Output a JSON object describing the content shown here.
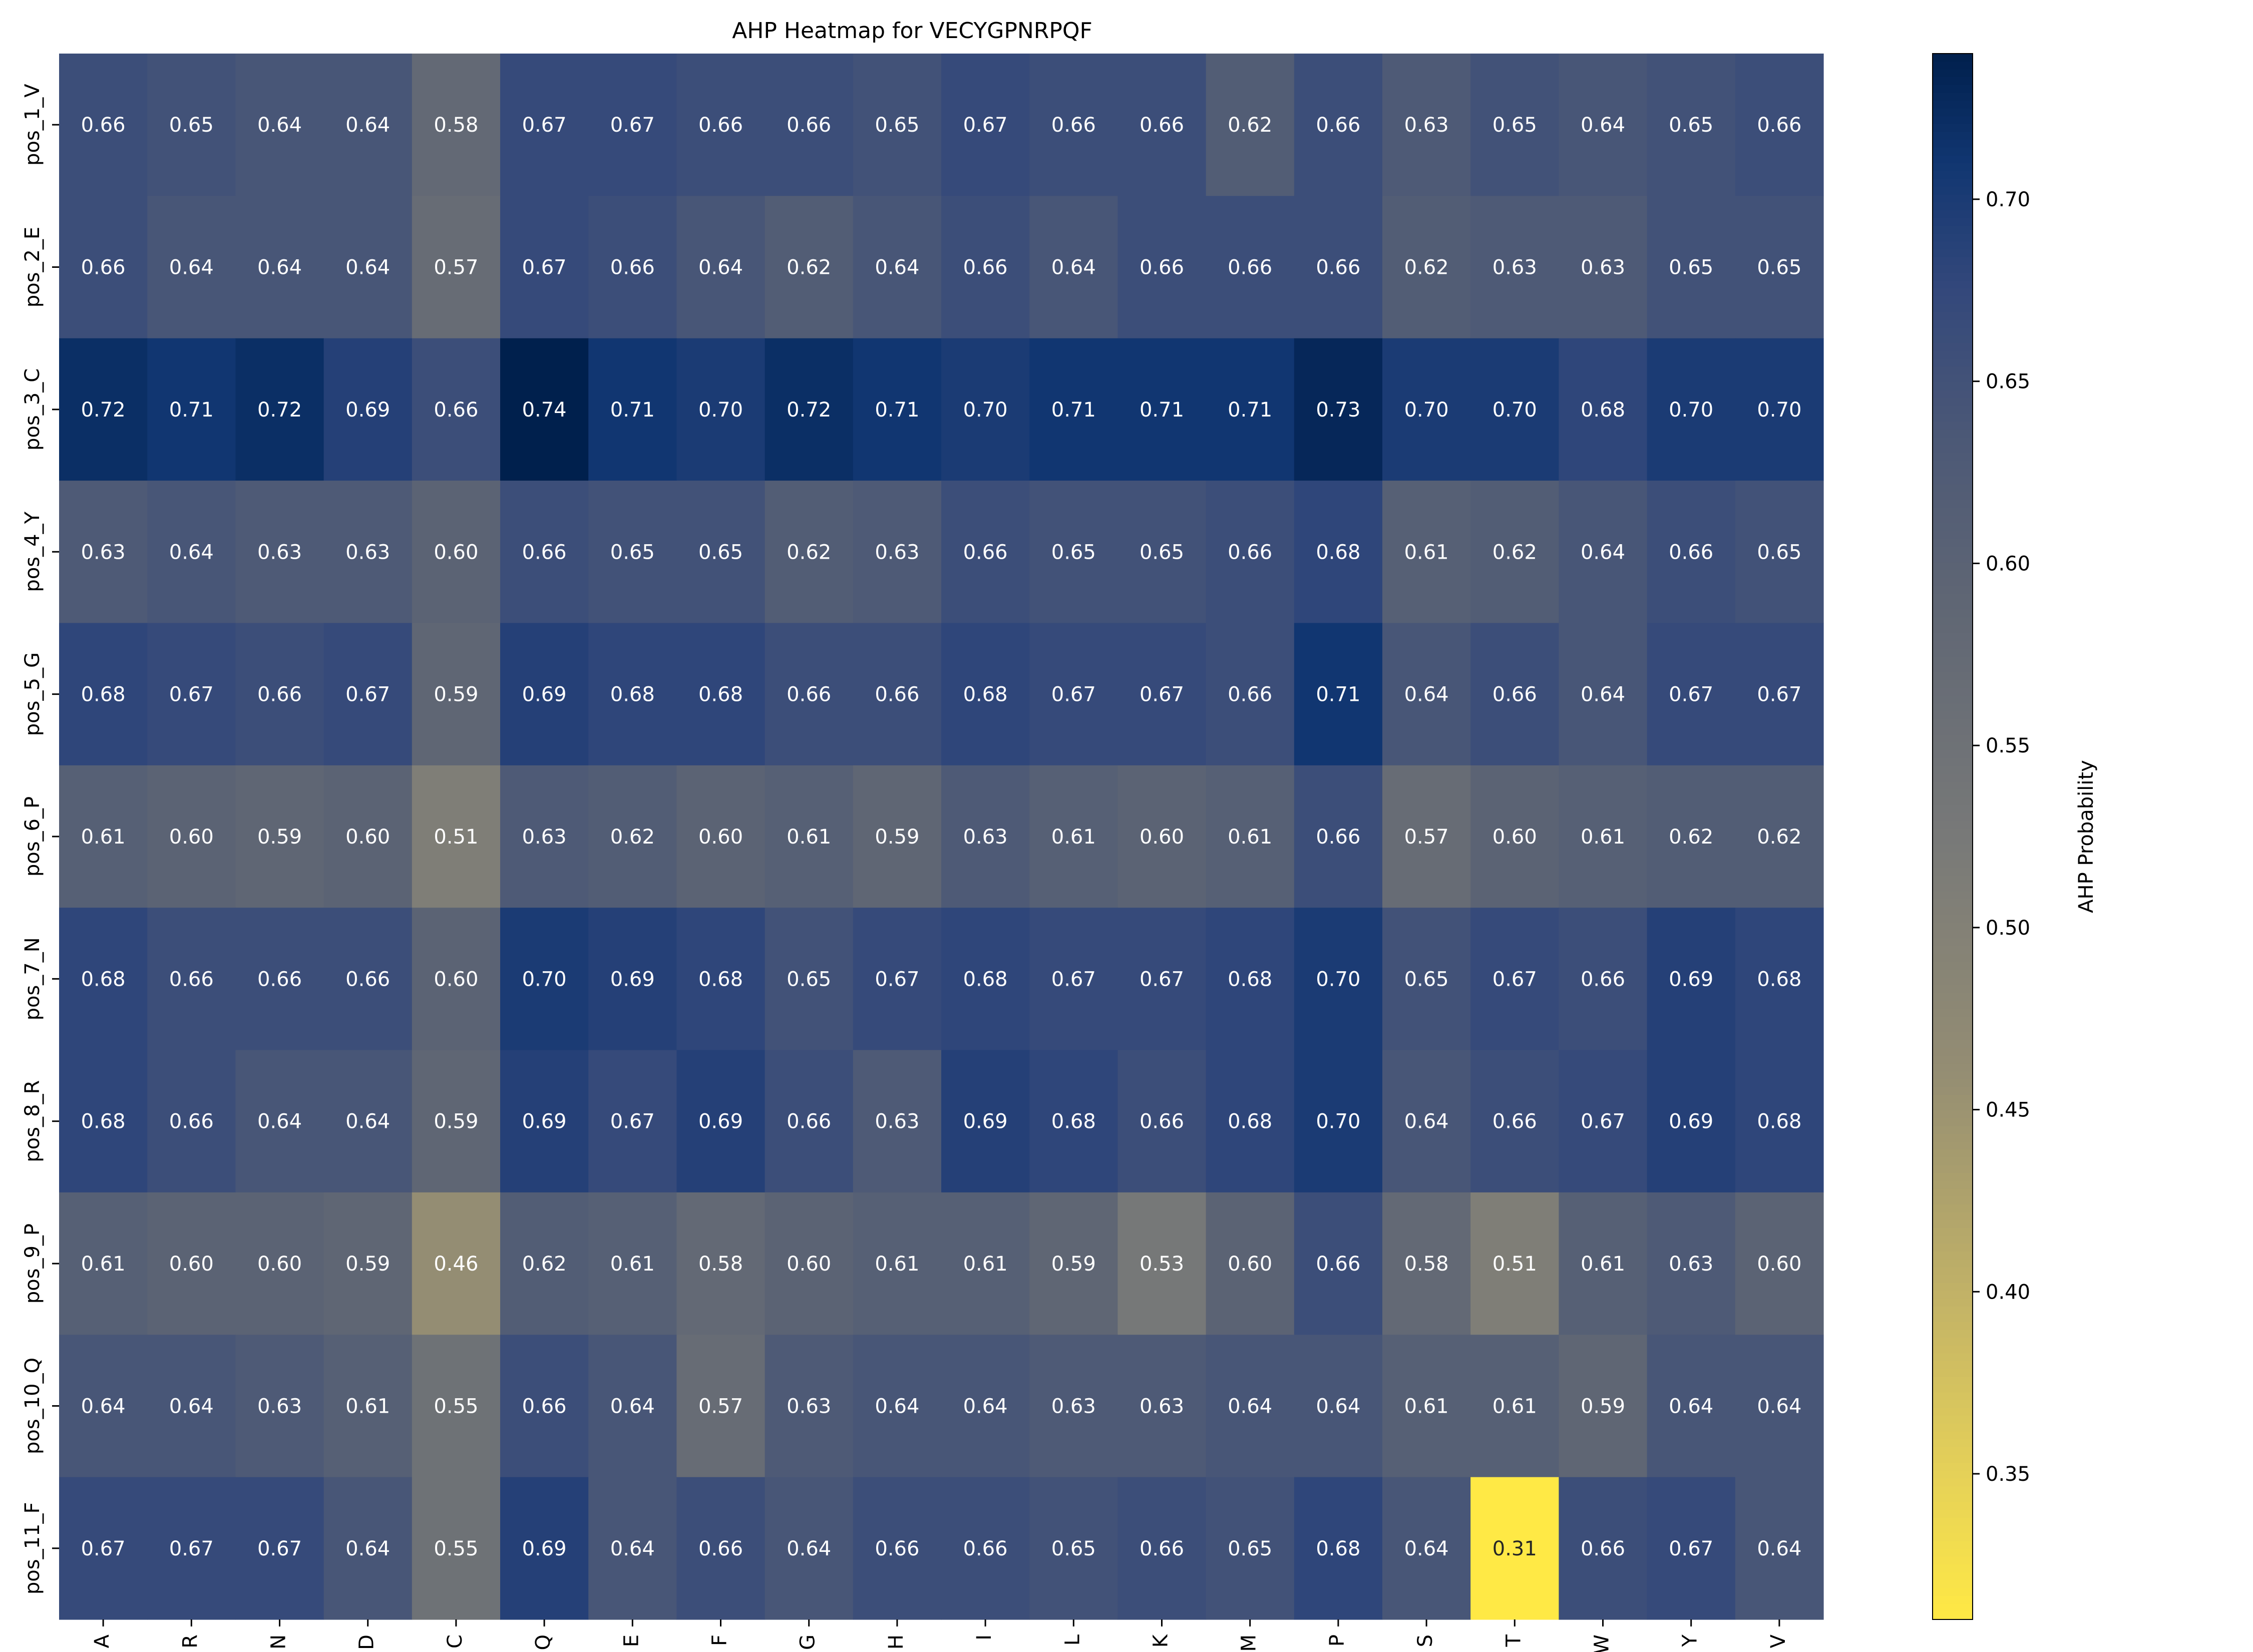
{
  "chart_data": {
    "type": "heatmap",
    "title": "AHP Heatmap for VECYGPNRPQF",
    "xlabel": "",
    "ylabel": "",
    "x_categories": [
      "A",
      "R",
      "N",
      "D",
      "C",
      "Q",
      "E",
      "F",
      "G",
      "H",
      "I",
      "L",
      "K",
      "M",
      "P",
      "S",
      "T",
      "W",
      "Y",
      "V"
    ],
    "y_categories": [
      "pos_1_V",
      "pos_2_E",
      "pos_3_C",
      "pos_4_Y",
      "pos_5_G",
      "pos_6_P",
      "pos_7_N",
      "pos_8_R",
      "pos_9_P",
      "pos_10_Q",
      "pos_11_F"
    ],
    "values": [
      [
        0.66,
        0.65,
        0.64,
        0.64,
        0.58,
        0.67,
        0.67,
        0.66,
        0.66,
        0.65,
        0.67,
        0.66,
        0.66,
        0.62,
        0.66,
        0.63,
        0.65,
        0.64,
        0.65,
        0.66
      ],
      [
        0.66,
        0.64,
        0.64,
        0.64,
        0.57,
        0.67,
        0.66,
        0.64,
        0.62,
        0.64,
        0.66,
        0.64,
        0.66,
        0.66,
        0.66,
        0.62,
        0.63,
        0.63,
        0.65,
        0.65
      ],
      [
        0.72,
        0.71,
        0.72,
        0.69,
        0.66,
        0.74,
        0.71,
        0.7,
        0.72,
        0.71,
        0.7,
        0.71,
        0.71,
        0.71,
        0.73,
        0.7,
        0.7,
        0.68,
        0.7,
        0.7
      ],
      [
        0.63,
        0.64,
        0.63,
        0.63,
        0.6,
        0.66,
        0.65,
        0.65,
        0.62,
        0.63,
        0.66,
        0.65,
        0.65,
        0.66,
        0.68,
        0.61,
        0.62,
        0.64,
        0.66,
        0.65
      ],
      [
        0.68,
        0.67,
        0.66,
        0.67,
        0.59,
        0.69,
        0.68,
        0.68,
        0.66,
        0.66,
        0.68,
        0.67,
        0.67,
        0.66,
        0.71,
        0.64,
        0.66,
        0.64,
        0.67,
        0.67
      ],
      [
        0.61,
        0.6,
        0.59,
        0.6,
        0.51,
        0.63,
        0.62,
        0.6,
        0.61,
        0.59,
        0.63,
        0.61,
        0.6,
        0.61,
        0.66,
        0.57,
        0.6,
        0.61,
        0.62,
        0.62
      ],
      [
        0.68,
        0.66,
        0.66,
        0.66,
        0.6,
        0.7,
        0.69,
        0.68,
        0.65,
        0.67,
        0.68,
        0.67,
        0.67,
        0.68,
        0.7,
        0.65,
        0.67,
        0.66,
        0.69,
        0.68
      ],
      [
        0.68,
        0.66,
        0.64,
        0.64,
        0.59,
        0.69,
        0.67,
        0.69,
        0.66,
        0.63,
        0.69,
        0.68,
        0.66,
        0.68,
        0.7,
        0.64,
        0.66,
        0.67,
        0.69,
        0.68
      ],
      [
        0.61,
        0.6,
        0.6,
        0.59,
        0.46,
        0.62,
        0.61,
        0.58,
        0.6,
        0.61,
        0.61,
        0.59,
        0.53,
        0.6,
        0.66,
        0.58,
        0.51,
        0.61,
        0.63,
        0.6
      ],
      [
        0.64,
        0.64,
        0.63,
        0.61,
        0.55,
        0.66,
        0.64,
        0.57,
        0.63,
        0.64,
        0.64,
        0.63,
        0.63,
        0.64,
        0.64,
        0.61,
        0.61,
        0.59,
        0.64,
        0.64
      ],
      [
        0.67,
        0.67,
        0.67,
        0.64,
        0.55,
        0.69,
        0.64,
        0.66,
        0.64,
        0.66,
        0.66,
        0.65,
        0.66,
        0.65,
        0.68,
        0.64,
        0.31,
        0.66,
        0.67,
        0.64
      ]
    ],
    "colormap": "cividis_r",
    "vmin": 0.31,
    "vmax": 0.74,
    "colorbar": {
      "label": "AHP Probability",
      "ticks": [
        0.35,
        0.4,
        0.45,
        0.5,
        0.55,
        0.6,
        0.65,
        0.7
      ],
      "tick_labels": [
        "0.35",
        "0.40",
        "0.45",
        "0.50",
        "0.55",
        "0.60",
        "0.65",
        "0.70"
      ]
    },
    "annotate_cells": true,
    "grid": false
  }
}
